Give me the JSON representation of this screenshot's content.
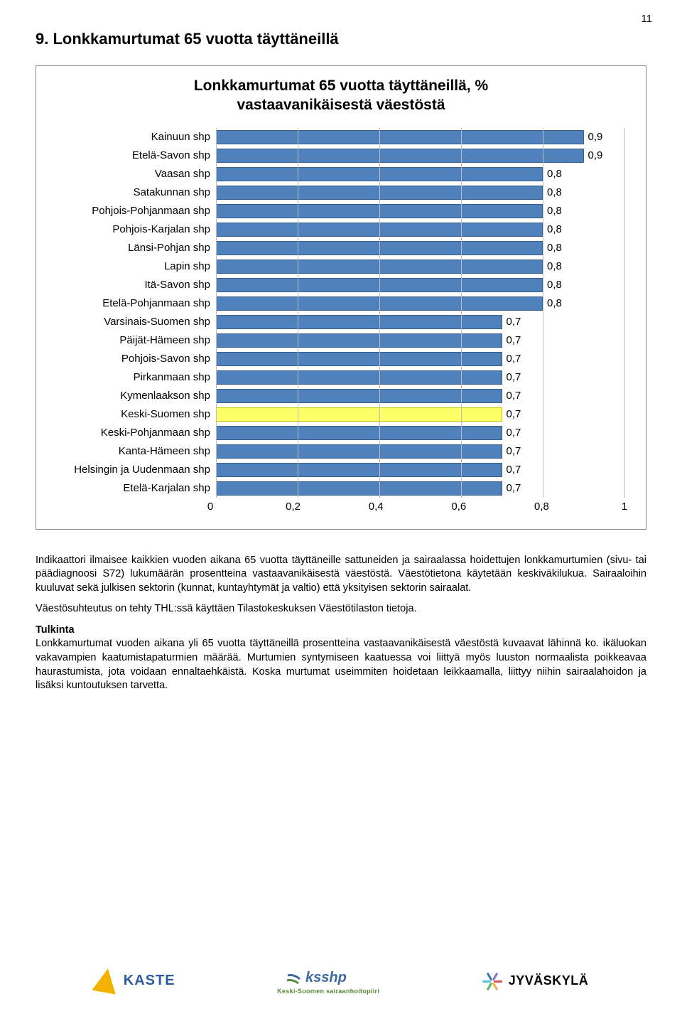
{
  "page_number": "11",
  "section_title": "9. Lonkkamurtumat 65 vuotta täyttäneillä",
  "chart": {
    "type": "bar-horizontal",
    "title_line1": "Lonkkamurtumat 65 vuotta täyttäneillä, %",
    "title_line2": "vastaavanikäisestä väestöstä",
    "x_min": 0,
    "x_max": 1,
    "x_ticks": [
      0,
      0.2,
      0.4,
      0.6,
      0.8,
      1
    ],
    "x_tick_labels": [
      "0",
      "0,2",
      "0,4",
      "0,6",
      "0,8",
      "1"
    ],
    "bar_default_color": "#4f81bd",
    "bar_default_border": "#385d8a",
    "highlight_color": "#ffff66",
    "highlight_border": "#c8c800",
    "grid_color": "#bfbfbf",
    "background": "#ffffff",
    "label_fontsize": 15,
    "value_fontsize": 15,
    "series": [
      {
        "label": "Kainuun shp",
        "value": 0.9,
        "value_label": "0,9"
      },
      {
        "label": "Etelä-Savon shp",
        "value": 0.9,
        "value_label": "0,9"
      },
      {
        "label": "Vaasan shp",
        "value": 0.8,
        "value_label": "0,8"
      },
      {
        "label": "Satakunnan shp",
        "value": 0.8,
        "value_label": "0,8"
      },
      {
        "label": "Pohjois-Pohjanmaan shp",
        "value": 0.8,
        "value_label": "0,8"
      },
      {
        "label": "Pohjois-Karjalan shp",
        "value": 0.8,
        "value_label": "0,8"
      },
      {
        "label": "Länsi-Pohjan shp",
        "value": 0.8,
        "value_label": "0,8"
      },
      {
        "label": "Lapin shp",
        "value": 0.8,
        "value_label": "0,8"
      },
      {
        "label": "Itä-Savon shp",
        "value": 0.8,
        "value_label": "0,8"
      },
      {
        "label": "Etelä-Pohjanmaan shp",
        "value": 0.8,
        "value_label": "0,8"
      },
      {
        "label": "Varsinais-Suomen shp",
        "value": 0.7,
        "value_label": "0,7"
      },
      {
        "label": "Päijät-Hämeen shp",
        "value": 0.7,
        "value_label": "0,7"
      },
      {
        "label": "Pohjois-Savon shp",
        "value": 0.7,
        "value_label": "0,7"
      },
      {
        "label": "Pirkanmaan shp",
        "value": 0.7,
        "value_label": "0,7"
      },
      {
        "label": "Kymenlaakson shp",
        "value": 0.7,
        "value_label": "0,7"
      },
      {
        "label": "Keski-Suomen shp",
        "value": 0.7,
        "value_label": "0,7",
        "highlight": true
      },
      {
        "label": "Keski-Pohjanmaan shp",
        "value": 0.7,
        "value_label": "0,7"
      },
      {
        "label": "Kanta-Hämeen shp",
        "value": 0.7,
        "value_label": "0,7"
      },
      {
        "label": "Helsingin ja Uudenmaan shp",
        "value": 0.7,
        "value_label": "0,7"
      },
      {
        "label": "Etelä-Karjalan shp",
        "value": 0.7,
        "value_label": "0,7"
      }
    ]
  },
  "body": {
    "p1": "Indikaattori ilmaisee kaikkien vuoden aikana 65 vuotta täyttäneille sattuneiden ja sairaalassa hoidettujen lonkkamurtumien (sivu- tai päädiagnoosi S72) lukumäärän prosentteina vastaavanikäisestä väestöstä. Väestötietona käytetään keskiväkilukua. Sairaaloihin kuuluvat sekä julkisen sektorin (kunnat, kuntayhtymät ja valtio) että yksityisen sektorin sairaalat.",
    "p2": "Väestösuhteutus on tehty THL:ssä käyttäen Tilastokeskuksen Väestötilaston tietoja.",
    "tulkinta_head": "Tulkinta",
    "p3": "Lonkkamurtumat vuoden aikana yli 65 vuotta täyttäneillä prosentteina vastaavanikäisestä väestöstä kuvaavat lähinnä ko. ikäluokan vakavampien kaatumistapaturmien määrää. Murtumien syntymiseen kaatuessa voi liittyä myös luuston normaalista poikkeavaa haurastumista, jota voidaan ennaltaehkäistä. Koska murtumat useimmiten hoidetaan leikkaamalla, liittyy niihin sairaalahoidon ja lisäksi kuntoutuksen tarvetta."
  },
  "logos": {
    "kaste": "KASTE",
    "ksshp": "ksshp",
    "ksshp_sub": "Keski-Suomen sairaanhoitopiiri",
    "jkl": "JYVÄSKYLÄ",
    "jkl_colors": [
      "#d9534f",
      "#f0ad4e",
      "#5cb85c",
      "#5bc0de",
      "#337ab7",
      "#8a6dbf"
    ]
  }
}
